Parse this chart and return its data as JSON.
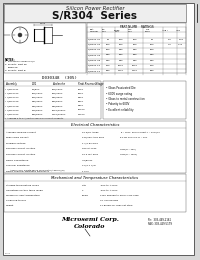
{
  "title_line1": "Silicon Power Rectifier",
  "title_line2": "S/R304  Series",
  "bg_color": "#d8d8d8",
  "page_bg": "#ffffff",
  "border_color": "#000000",
  "company_name": "Microsemi Corp.",
  "company_location": "Colorado",
  "phone_line1": "Ph:  303-469-2161",
  "phone_line2": "FAX: 303-469-5179",
  "doc_number": "D030348  (305)",
  "section_electrical": "Electrical Characteristics",
  "section_mechanical": "Mechanical and Temperature Characteristics",
  "features": [
    "Glass Passivated Die",
    "600V surge rating",
    "Glass to metal construction",
    "Polarity to 600V",
    "Excellent reliability"
  ],
  "part_list": [
    [
      "S/R30401",
      "50/50V",
      "100/100V",
      "100V"
    ],
    [
      "S/R30402",
      "100/100V",
      "200/200V",
      "200V"
    ],
    [
      "S/R30404",
      "200/200V",
      "400/400V",
      "400V"
    ],
    [
      "S/R30406",
      "300/300V",
      "600/600V",
      "600V"
    ],
    [
      "S/R30408",
      "400/400V",
      "800/800V",
      "800V"
    ],
    [
      "S/R30410",
      "500/500V",
      "1000/1000V",
      "1000V"
    ],
    [
      "S/R30412",
      "600/600V",
      "1200/1200V",
      "1200V"
    ]
  ],
  "elec_data": [
    [
      "Average Forward current",
      "10.0/20 Amps",
      "TJ = 150C, half-sine Rect, f = 60Hz/PC"
    ],
    [
      "Peak surge current",
      "140/200 Amp max",
      "8.3 ms half-sine, Tj = 25C"
    ],
    [
      "Forward voltage",
      "1.1/1.5V max",
      ""
    ],
    [
      "Reverse current junction",
      "250 uA max",
      "VRM(Tj = 25C)"
    ],
    [
      "Reverse current junction",
      "10.0 mA max",
      "VRM(Tj = 150C)"
    ],
    [
      "Diode Capacitance",
      "75/80 pF",
      ""
    ],
    [
      "Thermal Resistance",
      "2.5/1.7 C/W",
      ""
    ],
    [
      "Diode Thermal Switching Frequency",
      "1 kHz",
      ""
    ]
  ],
  "mech_data": [
    [
      "Storage temperature range",
      "Tstg",
      "-65C to +175C"
    ],
    [
      "Operating junction temp range",
      "TJ",
      "-65C to +175C"
    ],
    [
      "Maximum lead temperature",
      "Tlead",
      "275C applied to 3mm from case"
    ],
    [
      "Soldering torque",
      "",
      "35 inch pounds"
    ],
    [
      "Weight",
      "",
      "11 grams for press-fit style"
    ]
  ]
}
